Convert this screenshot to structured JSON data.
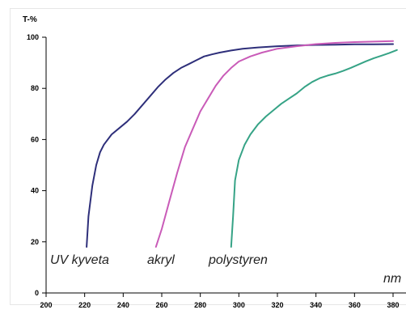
{
  "chart_data": {
    "type": "line",
    "title": "",
    "ylabel": "T-%",
    "xlabel": "",
    "x_unit_label": "nm",
    "xlim": [
      200,
      380
    ],
    "ylim": [
      0,
      100
    ],
    "x_ticks": [
      200,
      220,
      240,
      260,
      280,
      300,
      320,
      340,
      360,
      380
    ],
    "y_ticks": [
      0,
      20,
      40,
      60,
      80,
      100
    ],
    "grid": false,
    "legend": "none",
    "series": [
      {
        "name": "UV kyveta",
        "color": "#2e2f7a",
        "x": [
          221,
          222,
          224,
          226,
          228,
          230,
          234,
          238,
          242,
          246,
          250,
          254,
          258,
          262,
          266,
          270,
          274,
          278,
          282,
          286,
          290,
          296,
          302,
          310,
          320,
          330,
          340,
          350,
          360,
          370,
          380
        ],
        "y": [
          18,
          30,
          42,
          50,
          55,
          58,
          62,
          64.5,
          67,
          70,
          73.5,
          77,
          80.5,
          83.5,
          86,
          88,
          89.5,
          91,
          92.5,
          93.3,
          94,
          94.8,
          95.5,
          96,
          96.5,
          96.8,
          97,
          97.1,
          97.2,
          97.2,
          97.3
        ]
      },
      {
        "name": "akryl",
        "color": "#c95bb8",
        "x": [
          257,
          260,
          264,
          268,
          272,
          276,
          280,
          284,
          288,
          292,
          296,
          300,
          306,
          312,
          320,
          330,
          340,
          350,
          360,
          370,
          380
        ],
        "y": [
          18,
          25,
          36,
          47,
          57,
          64,
          71,
          76,
          81,
          85,
          88,
          90.5,
          92.5,
          94,
          95.5,
          96.5,
          97.3,
          97.8,
          98.1,
          98.3,
          98.5
        ]
      },
      {
        "name": "polystyren",
        "color": "#36a386",
        "x": [
          296,
          297,
          298,
          300,
          303,
          306,
          310,
          314,
          318,
          322,
          326,
          330,
          334,
          338,
          342,
          346,
          350,
          354,
          358,
          362,
          366,
          370,
          374,
          378,
          382
        ],
        "y": [
          18,
          30,
          44,
          52,
          58,
          62,
          66,
          69,
          71.5,
          74,
          76,
          78,
          80.5,
          82.5,
          84,
          85,
          85.8,
          86.8,
          88,
          89.3,
          90.6,
          91.8,
          92.8,
          93.8,
          95
        ]
      }
    ]
  }
}
